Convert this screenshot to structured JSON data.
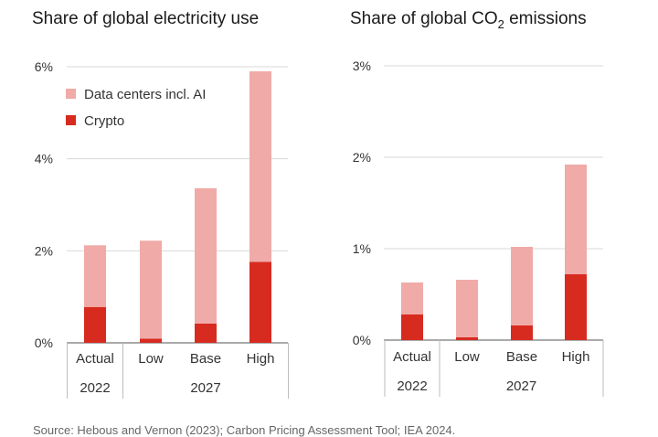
{
  "chart_data": [
    {
      "type": "bar",
      "stacked": true,
      "title": "Share of global electricity use",
      "categories": [
        "Actual",
        "Low",
        "Base",
        "High"
      ],
      "groups": [
        {
          "label": "2022",
          "categories": [
            "Actual"
          ]
        },
        {
          "label": "2027",
          "categories": [
            "Low",
            "Base",
            "High"
          ]
        }
      ],
      "series": [
        {
          "name": "Crypto",
          "color": "#d72b20",
          "values": [
            0.78,
            0.09,
            0.42,
            1.76
          ]
        },
        {
          "name": "Data centers incl. AI",
          "color": "#f0aaa8",
          "values": [
            1.34,
            2.13,
            2.94,
            4.14
          ]
        }
      ],
      "yticks": [
        "0%",
        "2%",
        "4%",
        "6%"
      ],
      "ylim": [
        0,
        6
      ],
      "legend": {
        "position": "top-left",
        "entries": [
          "Data centers incl. AI",
          "Crypto"
        ]
      },
      "grid": true
    },
    {
      "type": "bar",
      "stacked": true,
      "title_main": "Share of global CO",
      "title_sub": "2",
      "title_tail": " emissions",
      "categories": [
        "Actual",
        "Low",
        "Base",
        "High"
      ],
      "groups": [
        {
          "label": "2022",
          "categories": [
            "Actual"
          ]
        },
        {
          "label": "2027",
          "categories": [
            "Low",
            "Base",
            "High"
          ]
        }
      ],
      "series": [
        {
          "name": "Crypto",
          "color": "#d72b20",
          "values": [
            0.28,
            0.03,
            0.16,
            0.72
          ]
        },
        {
          "name": "Data centers incl. AI",
          "color": "#f0aaa8",
          "values": [
            0.35,
            0.63,
            0.86,
            1.2
          ]
        }
      ],
      "yticks": [
        "0%",
        "1%",
        "2%",
        "3%"
      ],
      "ylim": [
        0,
        3
      ],
      "grid": true
    }
  ],
  "source": "Source: Hebous and Vernon (2023); Carbon Pricing Assessment Tool; IEA 2024."
}
